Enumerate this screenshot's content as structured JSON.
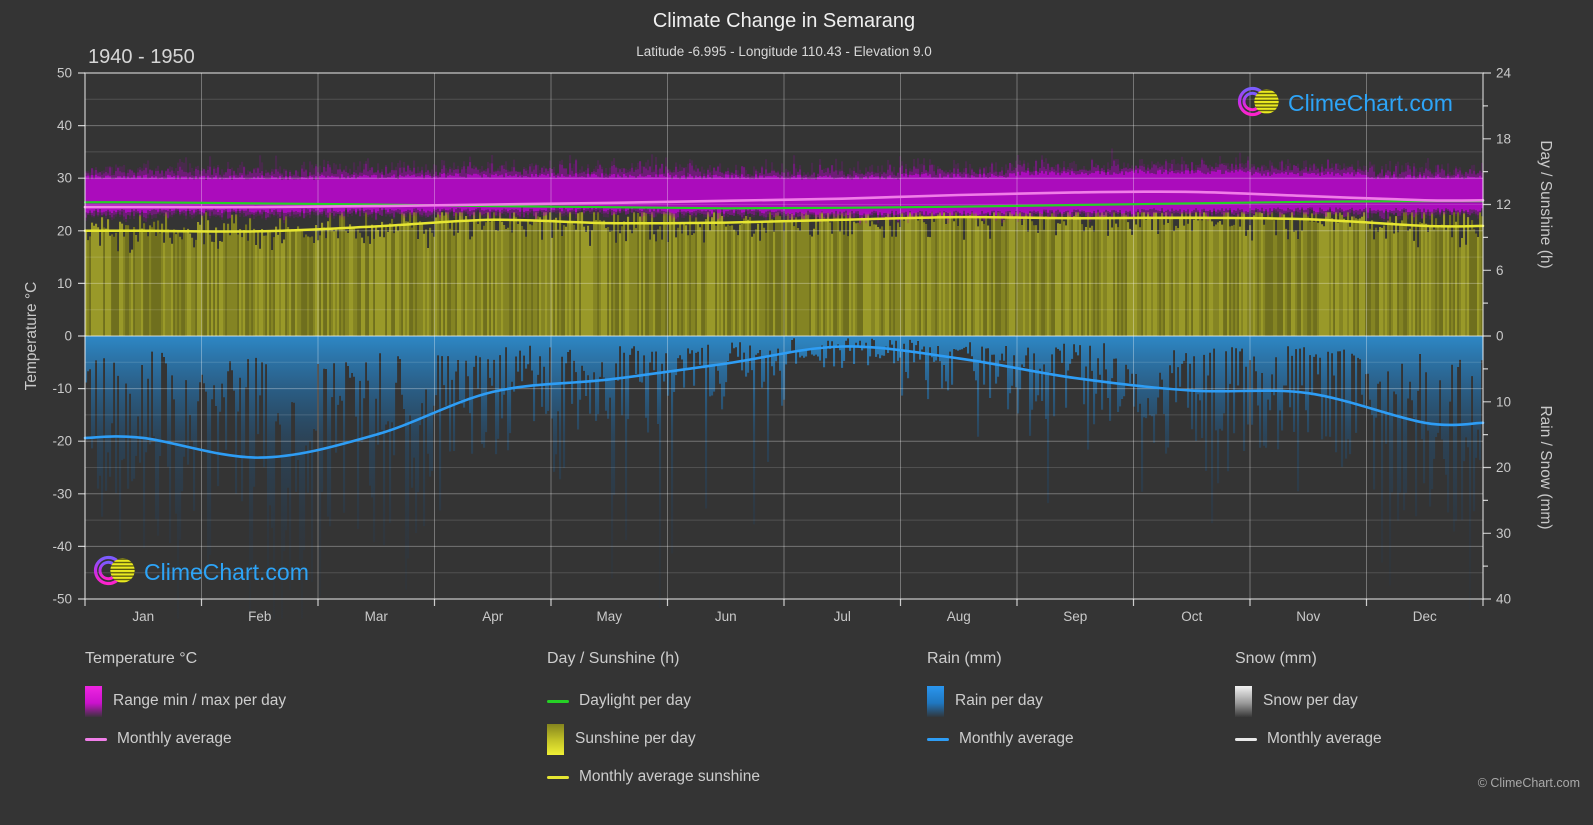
{
  "header": {
    "title": "Climate Change in Semarang",
    "subtitle": "Latitude -6.995 - Longitude 110.43 - Elevation 9.0",
    "period": "1940 - 1950"
  },
  "watermark": "ClimeChart.com",
  "copyright": "© ClimeChart.com",
  "colors": {
    "background": "#343434",
    "grid_major": "rgba(255,255,255,0.32)",
    "grid_minor": "rgba(255,255,255,0.14)",
    "zero_line": "rgba(255,255,255,0.6)",
    "frame": "rgba(255,255,255,0.75)",
    "tick_label": "#c9c9c9",
    "temp_band_core": "#b40ac6",
    "temp_band_fuzz": "#a808ba",
    "temp_avg_line": "#f07ee8",
    "daylight_line": "#25d125",
    "sunshine_fill": "#8b8b22",
    "sunshine_avg_line": "#e6e632",
    "rain_fill": "#2882c3",
    "rain_avg_line": "#2e9df5",
    "snow_line": "#e8e8e8",
    "logo_text": "#2da4f7"
  },
  "axes": {
    "left": {
      "title": "Temperature °C",
      "ticks": [
        50,
        40,
        30,
        20,
        10,
        0,
        -10,
        -20,
        -30,
        -40,
        -50
      ]
    },
    "right_top": {
      "title": "Day / Sunshine (h)",
      "ticks": [
        24,
        18,
        12,
        6,
        0
      ]
    },
    "right_bottom": {
      "title": "Rain / Snow (mm)",
      "ticks": [
        10,
        20,
        30,
        40
      ]
    }
  },
  "legend": {
    "columns": [
      {
        "header": "Temperature °C",
        "items": [
          {
            "swatch": "gradient-magenta",
            "label": "Range min / max per day"
          },
          {
            "swatch": "line-pink",
            "label": "Monthly average"
          }
        ]
      },
      {
        "header": "Day / Sunshine (h)",
        "items": [
          {
            "swatch": "line-green",
            "label": "Daylight per day"
          },
          {
            "swatch": "gradient-yellow",
            "label": "Sunshine per day"
          },
          {
            "swatch": "line-yellow",
            "label": "Monthly average sunshine"
          }
        ]
      },
      {
        "header": "Rain (mm)",
        "items": [
          {
            "swatch": "gradient-blue",
            "label": "Rain per day"
          },
          {
            "swatch": "line-blue",
            "label": "Monthly average"
          }
        ]
      },
      {
        "header": "Snow (mm)",
        "items": [
          {
            "swatch": "gradient-gray",
            "label": "Snow per day"
          },
          {
            "swatch": "line-white",
            "label": "Monthly average"
          }
        ]
      }
    ]
  },
  "chart_data": {
    "type": "area",
    "title": "Climate Change in Semarang",
    "months": [
      "Jan",
      "Feb",
      "Mar",
      "Apr",
      "May",
      "Jun",
      "Jul",
      "Aug",
      "Sep",
      "Oct",
      "Nov",
      "Dec"
    ],
    "ylim_temp_c": [
      -50,
      50
    ],
    "ylim_day_sunshine_h": [
      0,
      24
    ],
    "ylim_rain_snow_mm": [
      0,
      40
    ],
    "daylight_h": [
      12.2,
      12.1,
      12.0,
      11.85,
      11.75,
      11.65,
      11.7,
      11.8,
      11.95,
      12.1,
      12.25,
      12.3
    ],
    "sunshine_avg_h": [
      9.6,
      9.55,
      10.0,
      10.6,
      10.3,
      10.35,
      10.6,
      10.85,
      10.75,
      10.8,
      10.65,
      10.05
    ],
    "temp_avg_c": [
      24.5,
      24.5,
      24.7,
      25.0,
      25.3,
      25.7,
      26.1,
      26.8,
      27.3,
      27.4,
      26.6,
      25.8
    ],
    "temp_max_avg_c": [
      30.2,
      30.1,
      30.3,
      30.5,
      30.5,
      30.3,
      30.2,
      30.5,
      31.0,
      31.2,
      30.8,
      30.3
    ],
    "temp_min_avg_c": [
      23.8,
      23.8,
      23.9,
      24.0,
      24.0,
      23.7,
      23.4,
      23.4,
      23.6,
      23.9,
      24.0,
      23.9
    ],
    "rain_avg_mm": [
      15.5,
      18.5,
      15.0,
      8.5,
      6.6,
      4.2,
      1.6,
      3.4,
      6.4,
      8.3,
      8.7,
      13.2
    ],
    "snow_avg_mm": [
      0,
      0,
      0,
      0,
      0,
      0,
      0,
      0,
      0,
      0,
      0,
      0
    ]
  }
}
